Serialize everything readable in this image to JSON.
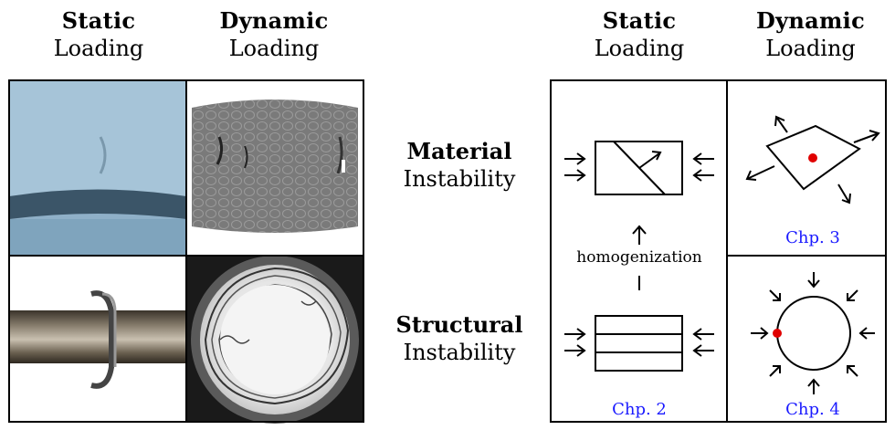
{
  "left_headers": [
    {
      "bold": "Static",
      "normal": "Loading"
    },
    {
      "bold": "Dynamic",
      "normal": "Loading"
    }
  ],
  "right_headers": [
    {
      "bold": "Static",
      "normal": "Loading"
    },
    {
      "bold": "Dynamic",
      "normal": "Loading"
    }
  ],
  "row_labels": [
    {
      "bold": "Material",
      "normal": "Instability"
    },
    {
      "bold": "Structural",
      "normal": "Instability"
    }
  ],
  "homogenization": "homogenization",
  "chapters": [
    "Chp. 2",
    "Chp. 3",
    "Chp. 4"
  ],
  "colors": {
    "chapter_link": "#1a1aff",
    "marker": "#e00000"
  }
}
